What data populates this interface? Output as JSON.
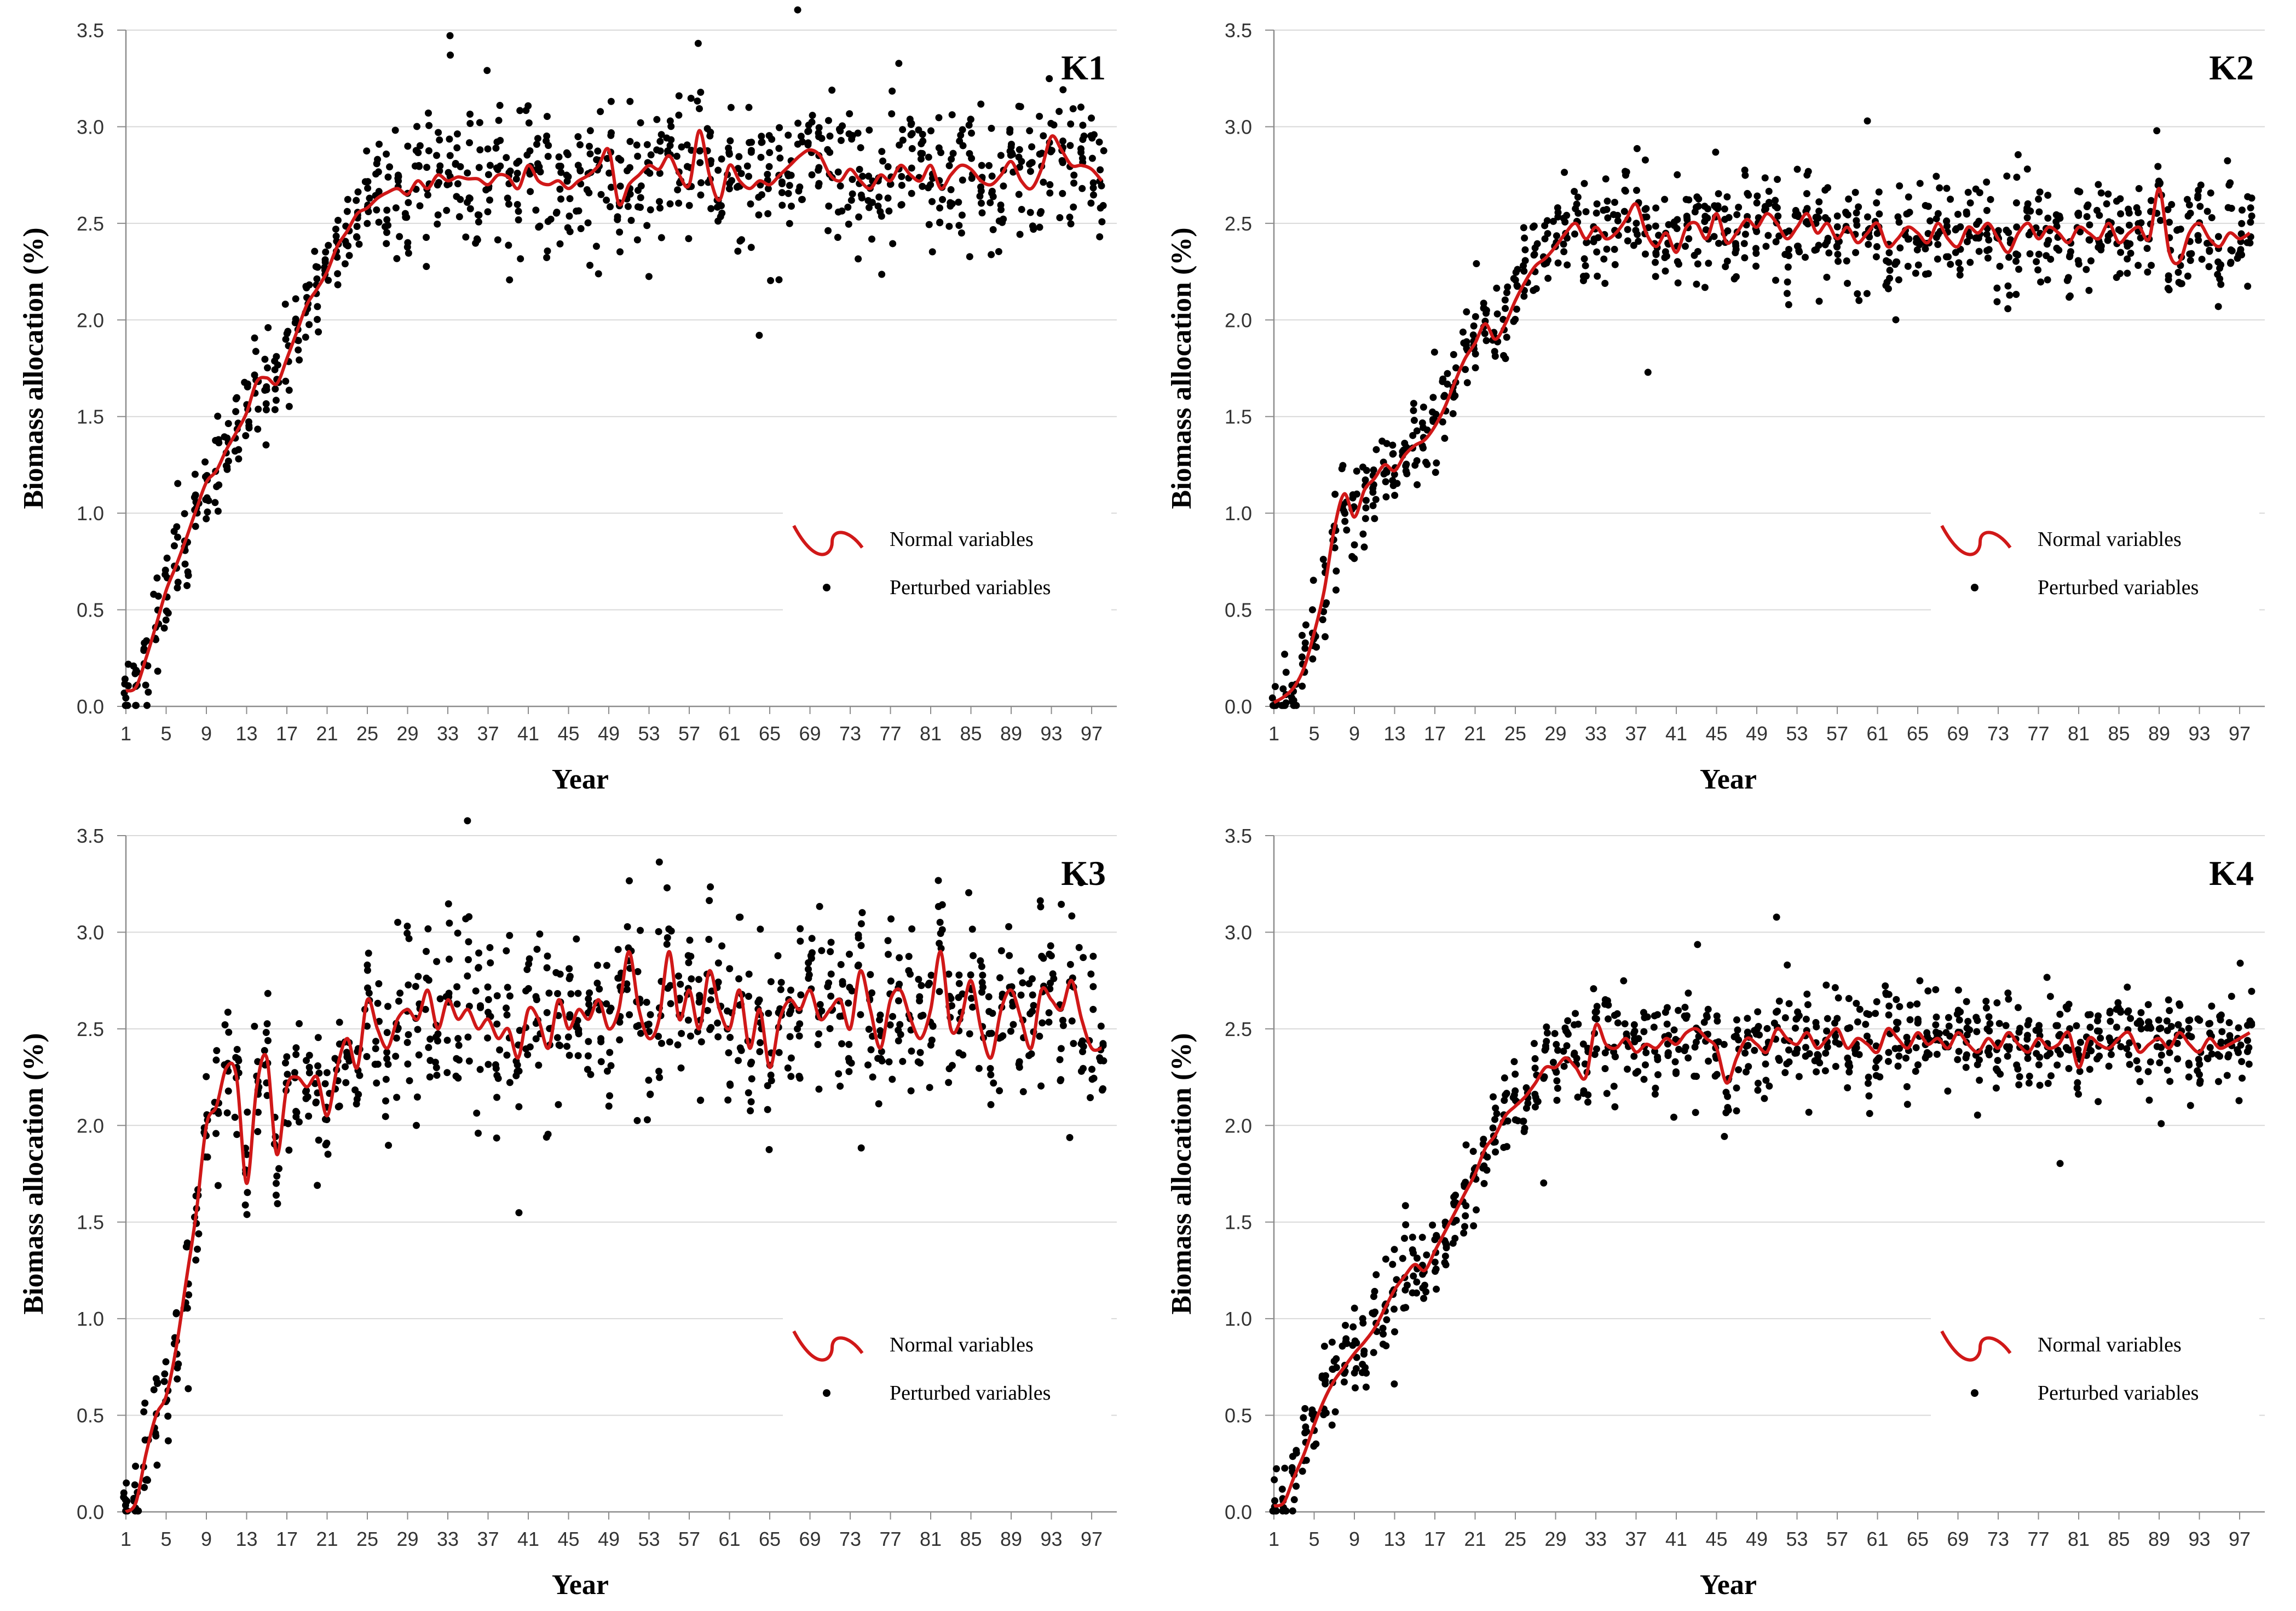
{
  "chart_data": [
    {
      "type": "line",
      "title": "K1",
      "xlabel": "Year",
      "ylabel": "Biomass allocation (%)",
      "ylim": [
        0,
        3.5
      ],
      "yticks": [
        0.0,
        0.5,
        1.0,
        1.5,
        2.0,
        2.5,
        3.0,
        3.5
      ],
      "xticks": [
        1,
        5,
        9,
        13,
        17,
        21,
        25,
        29,
        33,
        37,
        41,
        45,
        49,
        53,
        57,
        61,
        65,
        69,
        73,
        77,
        81,
        85,
        89,
        93,
        97
      ],
      "legend": [
        "Normal variables",
        "Perturbed variables"
      ],
      "series": [
        {
          "name": "Normal variables",
          "x_start": 1,
          "values": [
            0.08,
            0.1,
            0.25,
            0.42,
            0.6,
            0.73,
            0.87,
            1.02,
            1.16,
            1.22,
            1.33,
            1.42,
            1.52,
            1.68,
            1.7,
            1.67,
            1.8,
            1.94,
            2.08,
            2.16,
            2.25,
            2.38,
            2.46,
            2.55,
            2.58,
            2.63,
            2.66,
            2.68,
            2.65,
            2.72,
            2.68,
            2.75,
            2.72,
            2.74,
            2.73,
            2.73,
            2.7,
            2.75,
            2.74,
            2.68,
            2.8,
            2.72,
            2.7,
            2.72,
            2.68,
            2.72,
            2.75,
            2.8,
            2.88,
            2.6,
            2.7,
            2.75,
            2.8,
            2.78,
            2.85,
            2.75,
            2.7,
            2.98,
            2.75,
            2.62,
            2.8,
            2.72,
            2.68,
            2.72,
            2.7,
            2.75,
            2.8,
            2.85,
            2.88,
            2.85,
            2.75,
            2.72,
            2.78,
            2.72,
            2.68,
            2.75,
            2.72,
            2.8,
            2.75,
            2.72,
            2.8,
            2.68,
            2.75,
            2.8,
            2.78,
            2.72,
            2.7,
            2.75,
            2.82,
            2.72,
            2.68,
            2.78,
            2.95,
            2.88,
            2.8,
            2.8,
            2.78,
            2.72
          ]
        },
        {
          "name": "Perturbed variables",
          "scatter": true,
          "spread": 0.17,
          "early_spread": 0.12
        }
      ]
    },
    {
      "type": "line",
      "title": "K2",
      "xlabel": "Year",
      "ylabel": "Biomass allocation (%)",
      "ylim": [
        0,
        3.5
      ],
      "yticks": [
        0.0,
        0.5,
        1.0,
        1.5,
        2.0,
        2.5,
        3.0,
        3.5
      ],
      "xticks": [
        1,
        5,
        9,
        13,
        17,
        21,
        25,
        29,
        33,
        37,
        41,
        45,
        49,
        53,
        57,
        61,
        65,
        69,
        73,
        77,
        81,
        85,
        89,
        93,
        97
      ],
      "legend": [
        "Normal variables",
        "Perturbed variables"
      ],
      "series": [
        {
          "name": "Normal variables",
          "x_start": 1,
          "values": [
            0.02,
            0.05,
            0.1,
            0.2,
            0.38,
            0.6,
            0.92,
            1.1,
            0.98,
            1.12,
            1.18,
            1.25,
            1.22,
            1.3,
            1.35,
            1.38,
            1.45,
            1.55,
            1.68,
            1.8,
            1.88,
            1.98,
            1.9,
            1.98,
            2.1,
            2.2,
            2.28,
            2.32,
            2.38,
            2.45,
            2.5,
            2.42,
            2.48,
            2.42,
            2.45,
            2.52,
            2.6,
            2.45,
            2.38,
            2.45,
            2.35,
            2.48,
            2.5,
            2.42,
            2.55,
            2.4,
            2.45,
            2.52,
            2.48,
            2.55,
            2.5,
            2.42,
            2.48,
            2.55,
            2.45,
            2.5,
            2.42,
            2.48,
            2.4,
            2.45,
            2.5,
            2.38,
            2.42,
            2.48,
            2.45,
            2.4,
            2.5,
            2.42,
            2.38,
            2.48,
            2.45,
            2.5,
            2.42,
            2.35,
            2.45,
            2.5,
            2.42,
            2.48,
            2.45,
            2.4,
            2.48,
            2.45,
            2.42,
            2.5,
            2.4,
            2.45,
            2.48,
            2.42,
            2.68,
            2.35,
            2.3,
            2.45,
            2.5,
            2.42,
            2.38,
            2.45,
            2.42,
            2.45
          ]
        },
        {
          "name": "Perturbed variables",
          "scatter": true,
          "spread": 0.13,
          "early_spread": 0.1
        }
      ]
    },
    {
      "type": "line",
      "title": "K3",
      "xlabel": "Year",
      "ylabel": "Biomass allocation (%)",
      "ylim": [
        0,
        3.5
      ],
      "yticks": [
        0.0,
        0.5,
        1.0,
        1.5,
        2.0,
        2.5,
        3.0,
        3.5
      ],
      "xticks": [
        1,
        5,
        9,
        13,
        17,
        21,
        25,
        29,
        33,
        37,
        41,
        45,
        49,
        53,
        57,
        61,
        65,
        69,
        73,
        77,
        81,
        85,
        89,
        93,
        97
      ],
      "legend": [
        "Normal variables",
        "Perturbed variables"
      ],
      "series": [
        {
          "name": "Normal variables",
          "x_start": 1,
          "values": [
            0.0,
            0.05,
            0.3,
            0.5,
            0.6,
            0.85,
            1.2,
            1.55,
            2.0,
            2.1,
            2.3,
            2.25,
            1.7,
            2.2,
            2.35,
            1.85,
            2.2,
            2.25,
            2.2,
            2.25,
            2.05,
            2.3,
            2.45,
            2.3,
            2.65,
            2.5,
            2.4,
            2.55,
            2.6,
            2.55,
            2.7,
            2.5,
            2.65,
            2.55,
            2.6,
            2.5,
            2.55,
            2.45,
            2.5,
            2.35,
            2.6,
            2.55,
            2.4,
            2.65,
            2.5,
            2.6,
            2.55,
            2.65,
            2.5,
            2.6,
            2.9,
            2.6,
            2.45,
            2.55,
            2.9,
            2.55,
            2.7,
            2.5,
            2.8,
            2.6,
            2.5,
            2.7,
            2.4,
            2.6,
            2.3,
            2.55,
            2.65,
            2.6,
            2.7,
            2.55,
            2.6,
            2.65,
            2.5,
            2.8,
            2.6,
            2.4,
            2.65,
            2.7,
            2.55,
            2.45,
            2.6,
            2.9,
            2.5,
            2.55,
            2.75,
            2.5,
            2.35,
            2.6,
            2.7,
            2.55,
            2.4,
            2.7,
            2.65,
            2.6,
            2.75,
            2.55,
            2.4,
            2.4
          ]
        },
        {
          "name": "Perturbed variables",
          "scatter": true,
          "spread": 0.22,
          "early_spread": 0.14
        }
      ]
    },
    {
      "type": "line",
      "title": "K4",
      "xlabel": "Year",
      "ylabel": "Biomass allocation (%)",
      "ylim": [
        0,
        3.5
      ],
      "yticks": [
        0.0,
        0.5,
        1.0,
        1.5,
        2.0,
        2.5,
        3.0,
        3.5
      ],
      "xticks": [
        1,
        5,
        9,
        13,
        17,
        21,
        25,
        29,
        33,
        37,
        41,
        45,
        49,
        53,
        57,
        61,
        65,
        69,
        73,
        77,
        81,
        85,
        89,
        93,
        97
      ],
      "legend": [
        "Normal variables",
        "Perturbed variables"
      ],
      "series": [
        {
          "name": "Normal variables",
          "x_start": 1,
          "values": [
            0.03,
            0.05,
            0.18,
            0.3,
            0.45,
            0.58,
            0.68,
            0.75,
            0.82,
            0.88,
            0.95,
            1.05,
            1.15,
            1.22,
            1.28,
            1.25,
            1.35,
            1.45,
            1.55,
            1.65,
            1.75,
            1.88,
            1.95,
            2.05,
            2.1,
            2.15,
            2.22,
            2.3,
            2.3,
            2.35,
            2.3,
            2.25,
            2.52,
            2.42,
            2.4,
            2.45,
            2.38,
            2.42,
            2.4,
            2.45,
            2.42,
            2.48,
            2.5,
            2.45,
            2.4,
            2.22,
            2.35,
            2.45,
            2.42,
            2.38,
            2.5,
            2.45,
            2.42,
            2.48,
            2.4,
            2.45,
            2.5,
            2.4,
            2.45,
            2.42,
            2.38,
            2.5,
            2.45,
            2.4,
            2.48,
            2.42,
            2.45,
            2.4,
            2.48,
            2.42,
            2.38,
            2.45,
            2.4,
            2.48,
            2.42,
            2.38,
            2.45,
            2.4,
            2.42,
            2.48,
            2.3,
            2.45,
            2.42,
            2.4,
            2.45,
            2.48,
            2.38,
            2.42,
            2.45,
            2.4,
            2.48,
            2.42,
            2.38,
            2.45,
            2.4,
            2.42,
            2.45,
            2.48
          ]
        },
        {
          "name": "Perturbed variables",
          "scatter": true,
          "spread": 0.12,
          "early_spread": 0.11
        }
      ]
    }
  ]
}
